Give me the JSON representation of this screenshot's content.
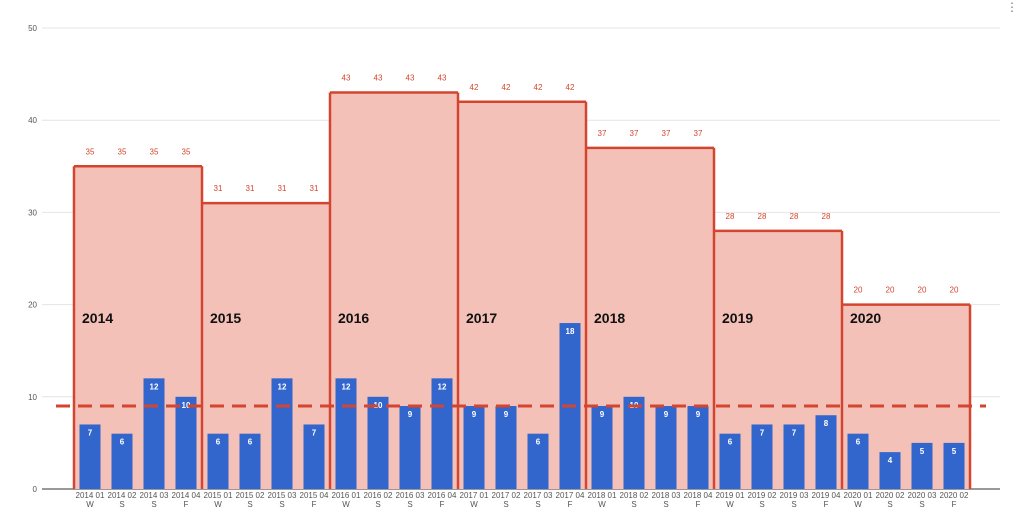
{
  "menu_icon": "more-vert-icon",
  "chart_data": {
    "type": "bar",
    "ylim": [
      0,
      50
    ],
    "yticks": [
      0,
      10,
      20,
      30,
      40,
      50
    ],
    "grid": true,
    "average_line": 9,
    "colors": {
      "bar": "#3366cc",
      "annual_fill": "#f4c1b8",
      "annual_line": "#d4452f"
    },
    "categories": [
      [
        "2014 01",
        "W"
      ],
      [
        "2014 02",
        "S"
      ],
      [
        "2014 03",
        "S"
      ],
      [
        "2014 04",
        "F"
      ],
      [
        "2015 01",
        "W"
      ],
      [
        "2015 02",
        "S"
      ],
      [
        "2015 03",
        "S"
      ],
      [
        "2015 04",
        "F"
      ],
      [
        "2016 01",
        "W"
      ],
      [
        "2016 02",
        "S"
      ],
      [
        "2016 03",
        "S"
      ],
      [
        "2016 04",
        "F"
      ],
      [
        "2017 01",
        "W"
      ],
      [
        "2017 02",
        "S"
      ],
      [
        "2017 03",
        "S"
      ],
      [
        "2017 04",
        "F"
      ],
      [
        "2018 01",
        "W"
      ],
      [
        "2018 02",
        "S"
      ],
      [
        "2018 03",
        "S"
      ],
      [
        "2018 04",
        "F"
      ],
      [
        "2019 01",
        "W"
      ],
      [
        "2019 02",
        "S"
      ],
      [
        "2019 03",
        "S"
      ],
      [
        "2019 04",
        "F"
      ],
      [
        "2020 01",
        "W"
      ],
      [
        "2020 02",
        "S"
      ],
      [
        "2020 03",
        "S"
      ],
      [
        "2020 02",
        "F"
      ]
    ],
    "values": [
      7,
      6,
      12,
      10,
      6,
      6,
      12,
      7,
      12,
      10,
      9,
      12,
      9,
      9,
      6,
      18,
      9,
      10,
      9,
      9,
      6,
      7,
      7,
      8,
      6,
      4,
      5,
      5
    ],
    "years": [
      {
        "label": "2014",
        "total": 35
      },
      {
        "label": "2015",
        "total": 31
      },
      {
        "label": "2016",
        "total": 43
      },
      {
        "label": "2017",
        "total": 42
      },
      {
        "label": "2018",
        "total": 37
      },
      {
        "label": "2019",
        "total": 28
      },
      {
        "label": "2020",
        "total": 20
      }
    ]
  }
}
